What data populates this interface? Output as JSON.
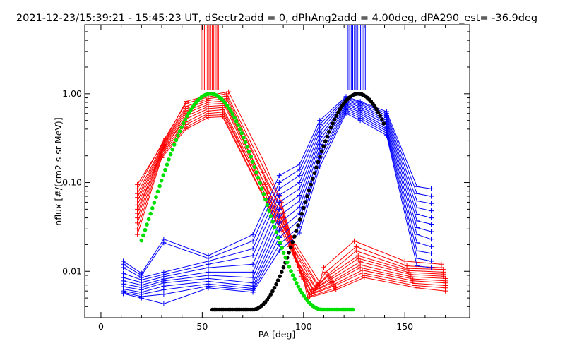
{
  "chart_data": {
    "type": "line",
    "title": "2021-12-23/15:39:21 - 15:45:23 UT, dSectr2add = 0, dPhAng2add = 4.00deg, dPA290_est= -36.9deg",
    "xlabel": "PA [deg]",
    "ylabel": "nflux [#/(cm2 s sr MeV)]",
    "xlim": [
      -8,
      182
    ],
    "ylim": [
      0.003,
      6.0
    ],
    "yscale": "log",
    "xticks": [
      0,
      50,
      100,
      150
    ],
    "xtick_labels": [
      "0",
      "50",
      "100",
      "150"
    ],
    "yticks": [
      0.01,
      0.1,
      1.0
    ],
    "ytick_labels": [
      "0.01",
      "0.10",
      "1.00"
    ],
    "grid": false,
    "series": [
      {
        "color": "#ff0000",
        "style": "line+plus",
        "x": [
          18,
          32,
          42,
          53,
          63,
          80,
          88,
          94,
          108,
          110,
          125,
          150,
          168
        ],
        "y": [
          0.095,
          0.31,
          0.82,
          0.96,
          1.05,
          0.18,
          0.07,
          0.024,
          0.0075,
          0.011,
          0.022,
          0.013,
          0.012
        ]
      },
      {
        "color": "#ff0000",
        "style": "line+plus",
        "x": [
          18,
          31,
          42,
          53,
          62,
          80,
          89,
          95,
          107,
          111,
          126,
          151,
          168
        ],
        "y": [
          0.085,
          0.3,
          0.78,
          0.92,
          1.0,
          0.15,
          0.06,
          0.02,
          0.0072,
          0.0098,
          0.019,
          0.0115,
          0.011
        ]
      },
      {
        "color": "#ff0000",
        "style": "line+plus",
        "x": [
          18,
          31,
          42,
          53,
          62,
          80,
          89,
          95,
          107,
          112,
          126,
          151,
          169
        ],
        "y": [
          0.075,
          0.28,
          0.72,
          0.88,
          0.94,
          0.13,
          0.052,
          0.018,
          0.0069,
          0.0092,
          0.017,
          0.0108,
          0.0105
        ]
      },
      {
        "color": "#ff0000",
        "style": "line+plus",
        "x": [
          18,
          31,
          42,
          53,
          62,
          81,
          90,
          96,
          106,
          112,
          127,
          152,
          169
        ],
        "y": [
          0.068,
          0.27,
          0.68,
          0.84,
          0.88,
          0.11,
          0.045,
          0.016,
          0.0066,
          0.0088,
          0.015,
          0.0102,
          0.0098
        ]
      },
      {
        "color": "#ff0000",
        "style": "line+plus",
        "x": [
          18,
          31,
          42,
          53,
          61,
          81,
          90,
          96,
          106,
          113,
          127,
          152,
          169
        ],
        "y": [
          0.062,
          0.26,
          0.64,
          0.8,
          0.83,
          0.095,
          0.04,
          0.014,
          0.0064,
          0.0084,
          0.014,
          0.0097,
          0.0093
        ]
      },
      {
        "color": "#ff0000",
        "style": "line+plus",
        "x": [
          18,
          31,
          42,
          53,
          61,
          82,
          90,
          97,
          105,
          113,
          128,
          153,
          169
        ],
        "y": [
          0.056,
          0.25,
          0.6,
          0.76,
          0.78,
          0.085,
          0.036,
          0.0128,
          0.0062,
          0.008,
          0.0128,
          0.0092,
          0.0088
        ]
      },
      {
        "color": "#ff0000",
        "style": "line+plus",
        "x": [
          18,
          31,
          42,
          53,
          61,
          82,
          91,
          97,
          105,
          114,
          128,
          153,
          170
        ],
        "y": [
          0.05,
          0.24,
          0.56,
          0.72,
          0.74,
          0.075,
          0.032,
          0.0118,
          0.006,
          0.0077,
          0.0118,
          0.0087,
          0.0083
        ]
      },
      {
        "color": "#ff0000",
        "style": "line+plus",
        "x": [
          18,
          30,
          42,
          53,
          60,
          83,
          91,
          98,
          104,
          114,
          128,
          154,
          170
        ],
        "y": [
          0.045,
          0.23,
          0.52,
          0.68,
          0.7,
          0.066,
          0.029,
          0.011,
          0.0058,
          0.0074,
          0.011,
          0.0082,
          0.0078
        ]
      },
      {
        "color": "#ff0000",
        "style": "line+plus",
        "x": [
          18,
          30,
          42,
          53,
          60,
          83,
          92,
          98,
          104,
          115,
          129,
          154,
          170
        ],
        "y": [
          0.04,
          0.22,
          0.48,
          0.64,
          0.66,
          0.06,
          0.026,
          0.0102,
          0.0056,
          0.0071,
          0.0103,
          0.0078,
          0.0074
        ]
      },
      {
        "color": "#ff0000",
        "style": "line+plus",
        "x": [
          18,
          30,
          42,
          53,
          60,
          84,
          92,
          99,
          103,
          115,
          129,
          155,
          170
        ],
        "y": [
          0.035,
          0.21,
          0.45,
          0.6,
          0.62,
          0.054,
          0.023,
          0.0095,
          0.0054,
          0.0068,
          0.0096,
          0.0073,
          0.0069
        ]
      },
      {
        "color": "#ff0000",
        "style": "line+plus",
        "x": [
          18,
          30,
          42,
          53,
          60,
          84,
          93,
          99,
          103,
          116,
          130,
          155,
          170
        ],
        "y": [
          0.03,
          0.2,
          0.42,
          0.57,
          0.58,
          0.048,
          0.021,
          0.0088,
          0.0052,
          0.0065,
          0.009,
          0.0069,
          0.0065
        ]
      },
      {
        "color": "#ff0000",
        "style": "line+plus",
        "x": [
          18,
          30,
          42,
          53,
          60,
          85,
          93,
          100,
          102,
          116,
          130,
          156,
          170
        ],
        "y": [
          0.026,
          0.19,
          0.4,
          0.54,
          0.55,
          0.042,
          0.019,
          0.0082,
          0.005,
          0.0062,
          0.0085,
          0.0065,
          0.006
        ]
      },
      {
        "color": "#0000ff",
        "style": "line+plus",
        "x": [
          11,
          20,
          31,
          53,
          75,
          88,
          98,
          108,
          121,
          128,
          141,
          156,
          163
        ],
        "y": [
          0.013,
          0.0095,
          0.023,
          0.015,
          0.026,
          0.12,
          0.16,
          0.5,
          0.93,
          0.82,
          0.63,
          0.09,
          0.085
        ]
      },
      {
        "color": "#0000ff",
        "style": "line+plus",
        "x": [
          11,
          20,
          31,
          53,
          75,
          88,
          98,
          108,
          121,
          128,
          141,
          156,
          163
        ],
        "y": [
          0.012,
          0.009,
          0.021,
          0.014,
          0.022,
          0.1,
          0.14,
          0.45,
          0.9,
          0.8,
          0.6,
          0.075,
          0.07
        ]
      },
      {
        "color": "#0000ff",
        "style": "line+plus",
        "x": [
          11,
          20,
          31,
          53,
          75,
          88,
          98,
          108,
          121,
          128,
          141,
          156,
          163
        ],
        "y": [
          0.011,
          0.0085,
          0.0098,
          0.013,
          0.018,
          0.085,
          0.12,
          0.41,
          0.87,
          0.77,
          0.57,
          0.062,
          0.058
        ]
      },
      {
        "color": "#0000ff",
        "style": "line+plus",
        "x": [
          11,
          20,
          31,
          53,
          75,
          88,
          98,
          108,
          121,
          128,
          141,
          156,
          163
        ],
        "y": [
          0.0095,
          0.008,
          0.0092,
          0.012,
          0.015,
          0.072,
          0.1,
          0.37,
          0.84,
          0.74,
          0.54,
          0.052,
          0.048
        ]
      },
      {
        "color": "#0000ff",
        "style": "line+plus",
        "x": [
          11,
          20,
          31,
          53,
          75,
          88,
          98,
          108,
          121,
          128,
          141,
          156,
          163
        ],
        "y": [
          0.0085,
          0.0075,
          0.0087,
          0.011,
          0.012,
          0.06,
          0.085,
          0.33,
          0.81,
          0.71,
          0.51,
          0.044,
          0.04
        ]
      },
      {
        "color": "#0000ff",
        "style": "line+plus",
        "x": [
          11,
          20,
          31,
          53,
          75,
          88,
          98,
          108,
          121,
          128,
          141,
          156,
          163
        ],
        "y": [
          0.0078,
          0.007,
          0.0082,
          0.0098,
          0.0098,
          0.05,
          0.072,
          0.3,
          0.78,
          0.68,
          0.48,
          0.037,
          0.034
        ]
      },
      {
        "color": "#0000ff",
        "style": "line+plus",
        "x": [
          11,
          20,
          31,
          53,
          75,
          88,
          98,
          108,
          121,
          128,
          141,
          156,
          163
        ],
        "y": [
          0.0072,
          0.0066,
          0.0078,
          0.009,
          0.0085,
          0.042,
          0.062,
          0.27,
          0.75,
          0.65,
          0.45,
          0.031,
          0.028
        ]
      },
      {
        "color": "#0000ff",
        "style": "line+plus",
        "x": [
          11,
          20,
          31,
          53,
          75,
          88,
          98,
          108,
          121,
          128,
          141,
          156,
          163
        ],
        "y": [
          0.0067,
          0.0062,
          0.0074,
          0.0083,
          0.0074,
          0.035,
          0.053,
          0.24,
          0.72,
          0.62,
          0.42,
          0.026,
          0.023
        ]
      },
      {
        "color": "#0000ff",
        "style": "line+plus",
        "x": [
          11,
          20,
          31,
          53,
          75,
          88,
          98,
          108,
          121,
          128,
          141,
          156,
          163
        ],
        "y": [
          0.0063,
          0.0058,
          0.0068,
          0.0077,
          0.0068,
          0.029,
          0.045,
          0.21,
          0.69,
          0.59,
          0.4,
          0.021,
          0.019
        ]
      },
      {
        "color": "#0000ff",
        "style": "line+plus",
        "x": [
          11,
          20,
          31,
          53,
          75,
          88,
          98,
          108,
          121,
          128,
          141,
          156,
          163
        ],
        "y": [
          0.006,
          0.0055,
          0.0062,
          0.0072,
          0.0064,
          0.024,
          0.038,
          0.19,
          0.66,
          0.56,
          0.38,
          0.017,
          0.016
        ]
      },
      {
        "color": "#0000ff",
        "style": "line+plus",
        "x": [
          11,
          20,
          31,
          53,
          75,
          88,
          98,
          108,
          121,
          128,
          141,
          156,
          163
        ],
        "y": [
          0.0058,
          0.0052,
          0.0055,
          0.0068,
          0.0061,
          0.02,
          0.032,
          0.17,
          0.63,
          0.53,
          0.36,
          0.014,
          0.013
        ]
      },
      {
        "color": "#0000ff",
        "style": "line+plus",
        "x": [
          11,
          20,
          31,
          53,
          75,
          88,
          98,
          108,
          121,
          128,
          141,
          156,
          163
        ],
        "y": [
          0.0056,
          0.005,
          0.0043,
          0.0065,
          0.0058,
          0.017,
          0.027,
          0.15,
          0.6,
          0.5,
          0.34,
          0.0115,
          0.011
        ]
      }
    ],
    "model_curves": [
      {
        "color": "#000000",
        "style": "dots",
        "peak_x": 127,
        "peak_y": 1.0,
        "min_x": 74.9,
        "min_y": 0.0037,
        "x_range": [
          55,
          140
        ]
      },
      {
        "color": "#00e000",
        "style": "dots",
        "peak_x": 54,
        "peak_y": 1.0,
        "min_x": 109.1,
        "min_y": 0.0037,
        "x_range": [
          20,
          125
        ]
      }
    ],
    "vertical_marks": [
      {
        "color": "#ff0000",
        "x_range": [
          49.5,
          58
        ],
        "y_bottom": 1.1
      },
      {
        "color": "#0000ff",
        "x_range": [
          122,
          130.5
        ],
        "y_bottom": 1.1
      }
    ]
  }
}
